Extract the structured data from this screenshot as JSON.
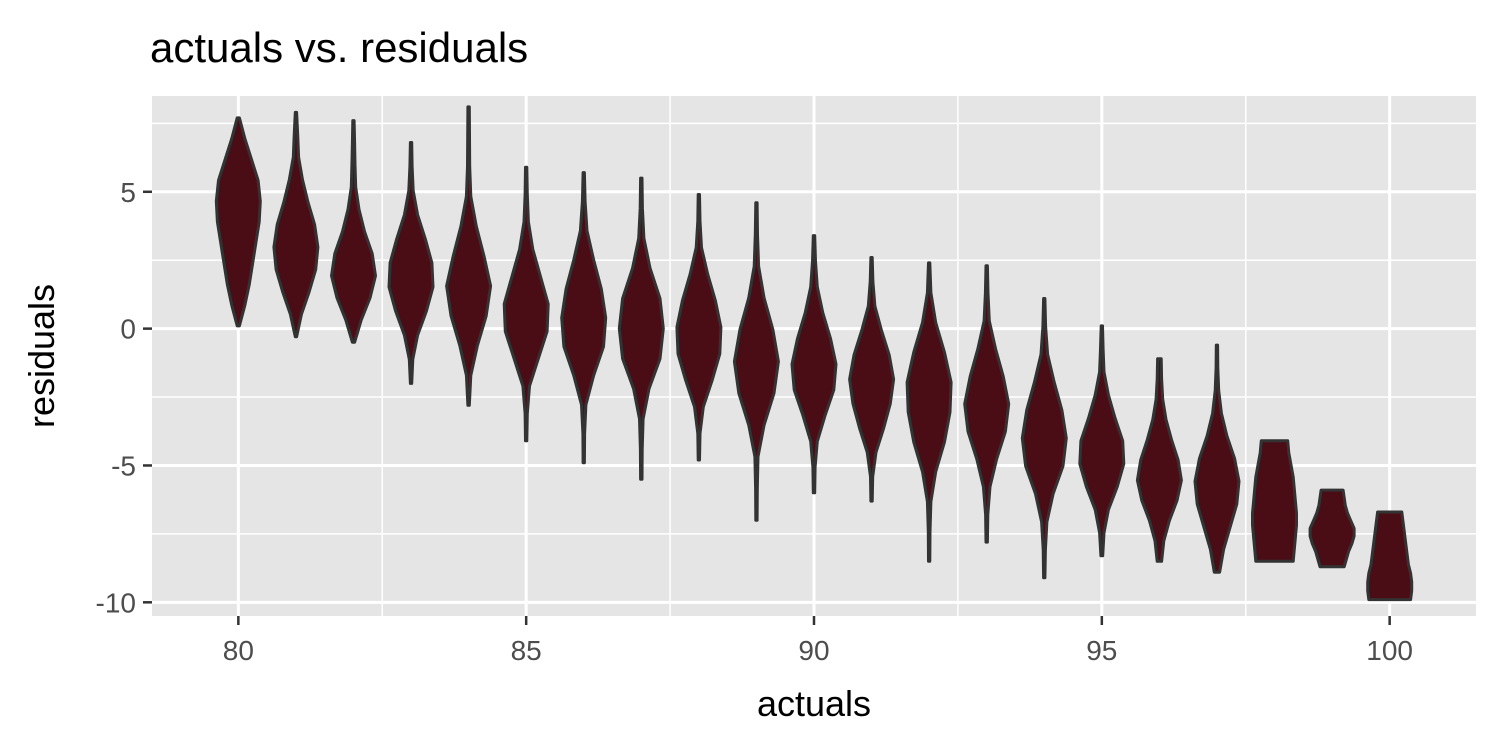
{
  "chart_data": {
    "type": "violin",
    "title": "actuals vs. residuals",
    "xlabel": "actuals",
    "ylabel": "residuals",
    "xlim": [
      78.5,
      101.5
    ],
    "ylim": [
      -10.5,
      8.5
    ],
    "x_ticks": [
      80,
      85,
      90,
      95,
      100
    ],
    "y_ticks": [
      -10,
      -5,
      0,
      5
    ],
    "grid": true,
    "legend": "none",
    "colors": {
      "panel_background": "#e5e5e5",
      "violin_fill": "#4a0d16",
      "violin_outline": "#333333",
      "grid": "#ffffff",
      "tick_label": "#4d4d4d"
    },
    "violins": [
      {
        "x": 80,
        "min": 0.1,
        "max": 7.7,
        "mode": 5.0,
        "profile": [
          0.05,
          0.3,
          0.5,
          0.65,
          0.8,
          0.95,
          1.0,
          0.9,
          0.6,
          0.3,
          0.05
        ]
      },
      {
        "x": 81,
        "min": -0.3,
        "max": 7.9,
        "mode": 3.5,
        "profile": [
          0.03,
          0.25,
          0.6,
          0.9,
          1.0,
          0.85,
          0.55,
          0.3,
          0.12,
          0.08,
          0.03
        ]
      },
      {
        "x": 82,
        "min": -0.5,
        "max": 7.6,
        "mode": 3.0,
        "profile": [
          0.05,
          0.35,
          0.75,
          1.0,
          0.85,
          0.5,
          0.25,
          0.1,
          0.07,
          0.05,
          0.03
        ]
      },
      {
        "x": 83,
        "min": -2.0,
        "max": 6.8,
        "mode": 2.2,
        "profile": [
          0.03,
          0.08,
          0.3,
          0.7,
          1.0,
          0.95,
          0.65,
          0.3,
          0.1,
          0.05,
          0.03
        ]
      },
      {
        "x": 84,
        "min": -2.8,
        "max": 8.1,
        "mode": 2.0,
        "profile": [
          0.03,
          0.1,
          0.4,
          0.8,
          1.0,
          0.7,
          0.35,
          0.1,
          0.05,
          0.04,
          0.03
        ]
      },
      {
        "x": 85,
        "min": -4.1,
        "max": 5.9,
        "mode": 1.4,
        "profile": [
          0.03,
          0.05,
          0.15,
          0.55,
          0.95,
          1.0,
          0.65,
          0.3,
          0.1,
          0.05,
          0.03
        ]
      },
      {
        "x": 86,
        "min": -4.9,
        "max": 5.7,
        "mode": 1.0,
        "profile": [
          0.03,
          0.04,
          0.1,
          0.45,
          0.9,
          1.0,
          0.8,
          0.45,
          0.15,
          0.06,
          0.03
        ]
      },
      {
        "x": 87,
        "min": -5.5,
        "max": 5.5,
        "mode": 0.5,
        "profile": [
          0.03,
          0.04,
          0.08,
          0.35,
          0.85,
          1.0,
          0.85,
          0.4,
          0.12,
          0.05,
          0.03
        ]
      },
      {
        "x": 88,
        "min": -4.8,
        "max": 4.9,
        "mode": 0.0,
        "profile": [
          0.03,
          0.05,
          0.2,
          0.6,
          0.95,
          1.0,
          0.75,
          0.4,
          0.12,
          0.05,
          0.03
        ]
      },
      {
        "x": 89,
        "min": -7.0,
        "max": 4.6,
        "mode": -0.7,
        "profile": [
          0.03,
          0.04,
          0.07,
          0.35,
          0.8,
          1.0,
          0.75,
          0.35,
          0.1,
          0.05,
          0.03
        ]
      },
      {
        "x": 90,
        "min": -6.0,
        "max": 3.4,
        "mode": -0.8,
        "profile": [
          0.03,
          0.05,
          0.15,
          0.5,
          0.9,
          1.0,
          0.75,
          0.4,
          0.15,
          0.07,
          0.03
        ]
      },
      {
        "x": 91,
        "min": -6.3,
        "max": 2.6,
        "mode": -1.5,
        "profile": [
          0.03,
          0.05,
          0.2,
          0.55,
          0.85,
          1.0,
          0.8,
          0.45,
          0.15,
          0.06,
          0.03
        ]
      },
      {
        "x": 92,
        "min": -8.5,
        "max": 2.4,
        "mode": -2.0,
        "profile": [
          0.03,
          0.04,
          0.08,
          0.3,
          0.7,
          0.95,
          1.0,
          0.7,
          0.3,
          0.08,
          0.03
        ]
      },
      {
        "x": 93,
        "min": -7.8,
        "max": 2.3,
        "mode": -2.5,
        "profile": [
          0.03,
          0.05,
          0.15,
          0.45,
          0.85,
          1.0,
          0.75,
          0.4,
          0.12,
          0.06,
          0.03
        ]
      },
      {
        "x": 94,
        "min": -9.1,
        "max": 1.1,
        "mode": -3.2,
        "profile": [
          0.03,
          0.05,
          0.12,
          0.4,
          0.85,
          1.0,
          0.8,
          0.45,
          0.15,
          0.06,
          0.03
        ]
      },
      {
        "x": 95,
        "min": -8.3,
        "max": 0.1,
        "mode": -3.5,
        "profile": [
          0.04,
          0.1,
          0.3,
          0.7,
          1.0,
          0.95,
          0.6,
          0.3,
          0.1,
          0.06,
          0.03
        ]
      },
      {
        "x": 96,
        "min": -8.5,
        "max": -1.1,
        "mode": -4.6,
        "profile": [
          0.1,
          0.2,
          0.45,
          0.8,
          1.0,
          0.85,
          0.55,
          0.3,
          0.15,
          0.1,
          0.08
        ]
      },
      {
        "x": 97,
        "min": -8.9,
        "max": -0.6,
        "mode": -5.2,
        "profile": [
          0.12,
          0.3,
          0.6,
          0.9,
          1.0,
          0.8,
          0.45,
          0.2,
          0.08,
          0.04,
          0.03
        ]
      },
      {
        "x": 98,
        "min": -8.5,
        "max": -4.1,
        "mode": -6.0,
        "profile": [
          0.85,
          0.9,
          0.95,
          1.0,
          1.0,
          0.95,
          0.9,
          0.85,
          0.75,
          0.65,
          0.6
        ]
      },
      {
        "x": 99,
        "min": -8.7,
        "max": -5.9,
        "mode": -7.3,
        "profile": [
          0.55,
          0.65,
          0.75,
          0.9,
          1.0,
          1.0,
          0.85,
          0.7,
          0.6,
          0.55,
          0.5
        ]
      },
      {
        "x": 100,
        "min": -9.9,
        "max": -6.7,
        "mode": -9.0,
        "profile": [
          0.95,
          1.0,
          1.0,
          0.95,
          0.85,
          0.8,
          0.75,
          0.7,
          0.65,
          0.6,
          0.55
        ]
      }
    ]
  }
}
